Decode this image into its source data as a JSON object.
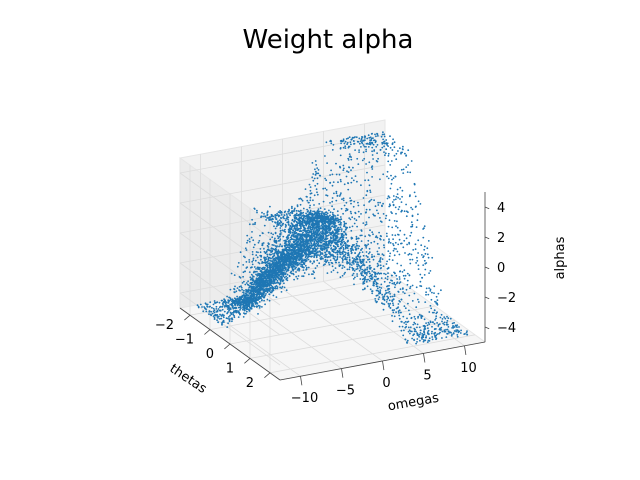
{
  "chart_data": {
    "type": "scatter",
    "projection": "3d",
    "title": "Weight alpha",
    "xlabel": "thetas",
    "ylabel": "omegas",
    "zlabel": "alphas",
    "xlim": [
      -2.5,
      2.5
    ],
    "ylim": [
      -12.5,
      12.5
    ],
    "zlim": [
      -5,
      5
    ],
    "x_ticks": [
      -2,
      -1,
      0,
      1,
      2
    ],
    "x_tick_labels": [
      "−2",
      "−1",
      "0",
      "1",
      "2"
    ],
    "y_ticks": [
      -10,
      -5,
      0,
      5,
      10
    ],
    "y_tick_labels": [
      "−10",
      "−5",
      "0",
      "5",
      "10"
    ],
    "z_ticks": [
      -4,
      -2,
      0,
      2,
      4
    ],
    "z_tick_labels": [
      "−4",
      "−2",
      "0",
      "2",
      "4"
    ],
    "grid": true,
    "marker_size": 1,
    "series": [
      {
        "color": "#1f77b4",
        "description": "dense sample cloud: alpha approx -0.45*theta*omega, clipped to [-4.7, 4.7], with a dense band near omega = -7 ... -3"
      }
    ]
  },
  "colors": {
    "scatter": "#1f77b4",
    "pane": "#f2f2f2",
    "grid": "#dcdcdc"
  }
}
